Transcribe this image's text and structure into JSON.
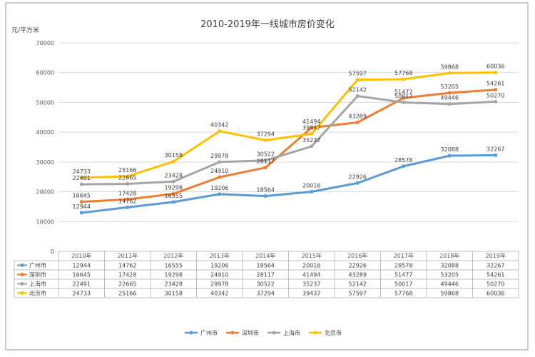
{
  "chart_data": {
    "type": "line",
    "title": "2010-2019年一线城市房价变化",
    "ylabel": "元/平方米",
    "ylim": [
      0,
      70000
    ],
    "yticks": [
      0,
      10000,
      20000,
      30000,
      40000,
      50000,
      60000,
      70000
    ],
    "grid": true,
    "legend_position": "bottom",
    "data_table": true,
    "categories": [
      "2010年",
      "2011年",
      "2012年",
      "2013年",
      "2014年",
      "2015年",
      "2016年",
      "2017年",
      "2018年",
      "2019年"
    ],
    "series": [
      {
        "name": "广州市",
        "color": "#5b9bd5",
        "values": [
          12944,
          14762,
          16555,
          19206,
          18564,
          20016,
          22926,
          28578,
          32088,
          32267
        ]
      },
      {
        "name": "深圳市",
        "color": "#ed7d31",
        "values": [
          16645,
          17428,
          19298,
          24910,
          28117,
          41494,
          43289,
          51477,
          53205,
          54261
        ]
      },
      {
        "name": "上海市",
        "color": "#a5a5a5",
        "values": [
          22491,
          22665,
          23428,
          29978,
          30522,
          35237,
          52142,
          50017,
          49446,
          50270
        ]
      },
      {
        "name": "北京市",
        "color": "#ffc000",
        "values": [
          24733,
          25166,
          30158,
          40342,
          37294,
          39437,
          57597,
          57768,
          59868,
          60036
        ]
      }
    ]
  }
}
